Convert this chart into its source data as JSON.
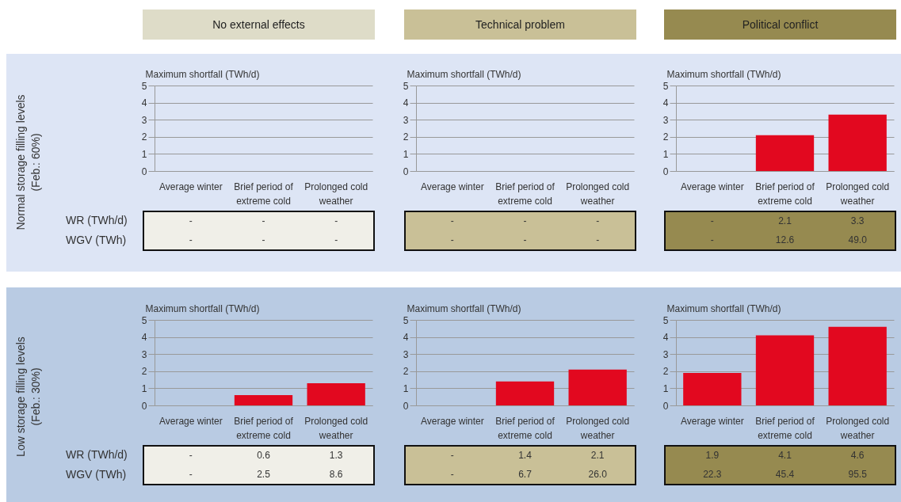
{
  "chart_data": [
    {
      "type": "bar",
      "title": "No external effects",
      "ylabel": "Maximum shortfall (TWh/d)",
      "categories": [
        "Average winter",
        "Brief period of extreme cold",
        "Prolonged cold weather"
      ],
      "values": [
        0,
        0,
        0
      ],
      "value_labels": [
        "-",
        "-",
        "-"
      ],
      "color": "#e2081f",
      "ylim": [
        0,
        5
      ],
      "yticks": [
        0,
        1,
        2,
        3,
        4,
        5
      ],
      "grid": "y",
      "annotations": [
        "Normal storage filling levels (Feb.: 60%)",
        "WR (TWh/d)",
        "WGV (TWh)",
        "-",
        "-",
        "-"
      ]
    },
    {
      "type": "bar",
      "title": "Technical problem",
      "ylabel": "Maximum shortfall (TWh/d)",
      "categories": [
        "Average winter",
        "Brief period of extreme cold",
        "Prolonged cold weather"
      ],
      "values": [
        0,
        0,
        0
      ],
      "value_labels": [
        "-",
        "-",
        "-"
      ],
      "color": "#e2081f",
      "ylim": [
        0,
        5
      ],
      "yticks": [
        0,
        1,
        2,
        3,
        4,
        5
      ],
      "grid": "y",
      "annotations": [
        "-",
        "-",
        "-"
      ]
    },
    {
      "type": "bar",
      "title": "Political conflict",
      "ylabel": "Maximum shortfall (TWh/d)",
      "categories": [
        "Average winter",
        "Brief period of extreme cold",
        "Prolonged cold weather"
      ],
      "values": [
        0,
        2.1,
        3.3
      ],
      "value_labels": [
        "-",
        "2.1",
        "3.3"
      ],
      "color": "#e2081f",
      "ylim": [
        0,
        5
      ],
      "yticks": [
        0,
        1,
        2,
        3,
        4,
        5
      ],
      "grid": "y",
      "annotations": [
        "-",
        "12.6",
        "49.0"
      ]
    },
    {
      "type": "bar",
      "ylabel": "Maximum shortfall (TWh/d)",
      "categories": [
        "Average winter",
        "Brief period of extreme cold",
        "Prolonged cold weather"
      ],
      "values": [
        0,
        0.6,
        1.3
      ],
      "value_labels": [
        "-",
        "0.6",
        "1.3"
      ],
      "color": "#e2081f",
      "ylim": [
        0,
        5
      ],
      "yticks": [
        0,
        1,
        2,
        3,
        4,
        5
      ],
      "grid": "y",
      "annotations": [
        "Low storage filling levels (Feb.: 30%)",
        "WR (TWh/d)",
        "WGV (TWh)",
        "-",
        "2.5",
        "8.6"
      ]
    },
    {
      "type": "bar",
      "ylabel": "Maximum shortfall (TWh/d)",
      "categories": [
        "Average winter",
        "Brief period of extreme cold",
        "Prolonged cold weather"
      ],
      "values": [
        0,
        1.4,
        2.1
      ],
      "value_labels": [
        "-",
        "1.4",
        "2.1"
      ],
      "color": "#e2081f",
      "ylim": [
        0,
        5
      ],
      "yticks": [
        0,
        1,
        2,
        3,
        4,
        5
      ],
      "grid": "y",
      "annotations": [
        "-",
        "6.7",
        "26.0"
      ]
    },
    {
      "type": "bar",
      "ylabel": "Maximum shortfall (TWh/d)",
      "categories": [
        "Average winter",
        "Brief period of extreme cold",
        "Prolonged cold weather"
      ],
      "values": [
        1.9,
        4.1,
        4.6
      ],
      "value_labels": [
        "1.9",
        "4.1",
        "4.6"
      ],
      "color": "#e2081f",
      "ylim": [
        0,
        5
      ],
      "yticks": [
        0,
        1,
        2,
        3,
        4,
        5
      ],
      "grid": "y",
      "annotations": [
        "22.3",
        "45.4",
        "95.5"
      ]
    }
  ]
}
